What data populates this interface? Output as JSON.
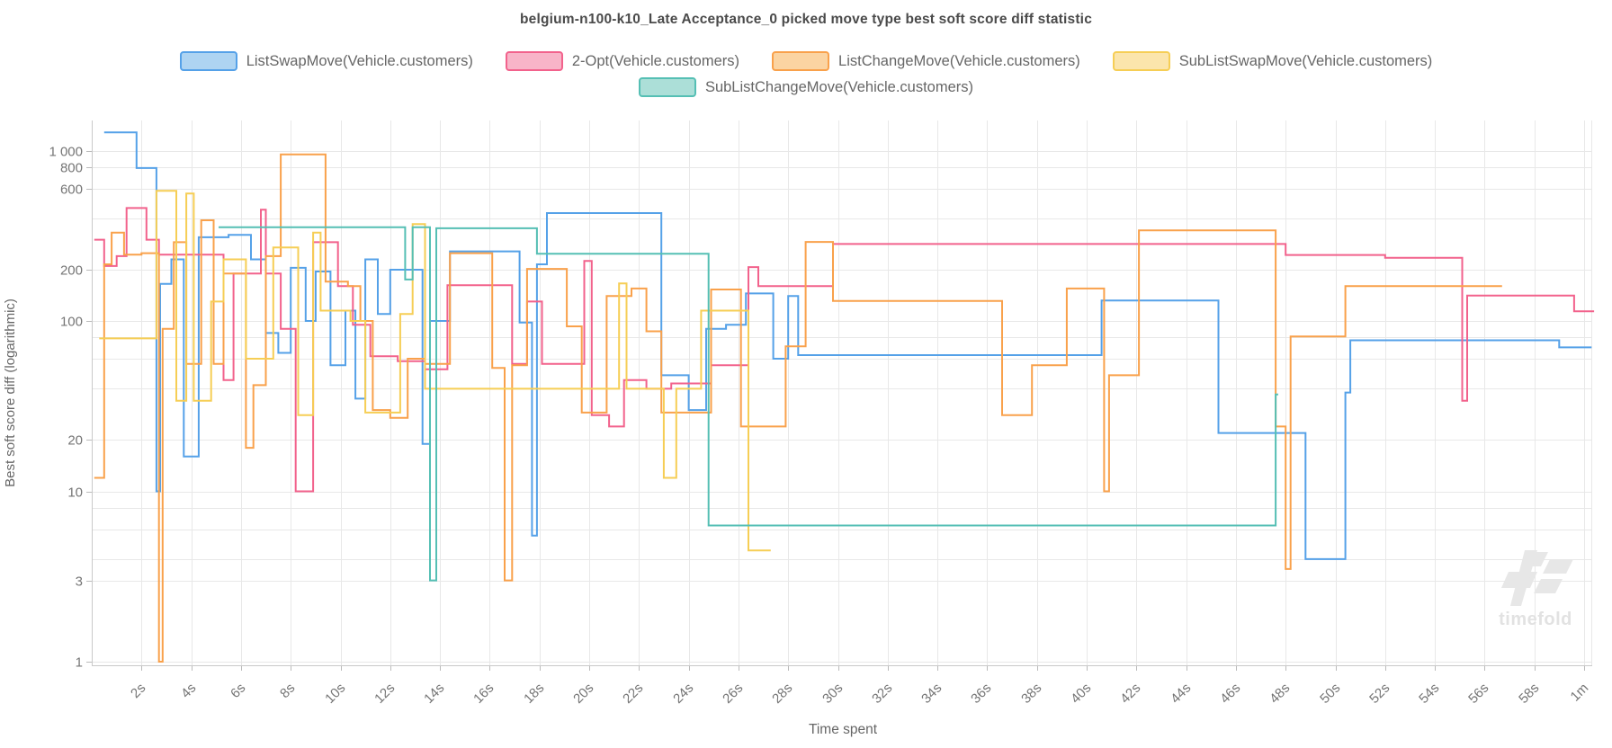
{
  "title": "belgium-n100-k10_Late Acceptance_0 picked move type best soft score diff statistic",
  "watermark": {
    "text": "timefold",
    "logo_icon": "timefold-tf-logo",
    "color": "#e7e7e7"
  },
  "axes": {
    "y_title": "Best soft score diff (logarithmic)",
    "x_title": "Time spent",
    "y_major_ticks": [
      {
        "v": 1000,
        "label": "1 000"
      },
      {
        "v": 800,
        "label": "800"
      },
      {
        "v": 600,
        "label": "600"
      },
      {
        "v": 200,
        "label": "200"
      },
      {
        "v": 100,
        "label": "100"
      },
      {
        "v": 20,
        "label": "20"
      },
      {
        "v": 10,
        "label": "10"
      },
      {
        "v": 3,
        "label": "3"
      },
      {
        "v": 1,
        "label": "1"
      }
    ],
    "y_minor_gridlines": [
      400,
      80,
      60,
      40,
      8,
      6,
      4
    ],
    "x_ticks": [
      {
        "t": 2,
        "label": "2s"
      },
      {
        "t": 4,
        "label": "4s"
      },
      {
        "t": 6,
        "label": "6s"
      },
      {
        "t": 8,
        "label": "8s"
      },
      {
        "t": 10,
        "label": "10s"
      },
      {
        "t": 12,
        "label": "12s"
      },
      {
        "t": 14,
        "label": "14s"
      },
      {
        "t": 16,
        "label": "16s"
      },
      {
        "t": 18,
        "label": "18s"
      },
      {
        "t": 20,
        "label": "20s"
      },
      {
        "t": 22,
        "label": "22s"
      },
      {
        "t": 24,
        "label": "24s"
      },
      {
        "t": 26,
        "label": "26s"
      },
      {
        "t": 28,
        "label": "28s"
      },
      {
        "t": 30,
        "label": "30s"
      },
      {
        "t": 32,
        "label": "32s"
      },
      {
        "t": 34,
        "label": "34s"
      },
      {
        "t": 36,
        "label": "36s"
      },
      {
        "t": 38,
        "label": "38s"
      },
      {
        "t": 40,
        "label": "40s"
      },
      {
        "t": 42,
        "label": "42s"
      },
      {
        "t": 44,
        "label": "44s"
      },
      {
        "t": 46,
        "label": "46s"
      },
      {
        "t": 48,
        "label": "48s"
      },
      {
        "t": 50,
        "label": "50s"
      },
      {
        "t": 52,
        "label": "52s"
      },
      {
        "t": 54,
        "label": "54s"
      },
      {
        "t": 56,
        "label": "56s"
      },
      {
        "t": 58,
        "label": "58s"
      },
      {
        "t": 60,
        "label": "1m"
      }
    ]
  },
  "legend": {
    "rows": [
      [
        0,
        1,
        2,
        3
      ],
      [
        4
      ]
    ]
  },
  "colors": {
    "grid": "#e8e8e8",
    "axis": "#c9c9c9",
    "tick": "#bbbbbb",
    "tick_text": "#757575",
    "axis_title_text": "#666666"
  },
  "chart_data": {
    "type": "line",
    "step": true,
    "x_unit": "seconds",
    "xlim": [
      0,
      60.5
    ],
    "y_scale": "log",
    "ylim": [
      1,
      1500
    ],
    "grid": true,
    "legend_position": "top",
    "series": [
      {
        "name": "ListSwapMove(Vehicle.customers)",
        "color": "#55a1e8",
        "fill": "#aed4f2",
        "points": [
          [
            0.5,
            1280
          ],
          [
            1.8,
            790
          ],
          [
            2.6,
            10
          ],
          [
            2.75,
            165
          ],
          [
            3.2,
            230
          ],
          [
            3.7,
            16
          ],
          [
            4.3,
            310
          ],
          [
            5.5,
            320
          ],
          [
            6.4,
            230
          ],
          [
            7.0,
            85
          ],
          [
            7.5,
            65
          ],
          [
            8.0,
            205
          ],
          [
            8.6,
            100
          ],
          [
            9.0,
            195
          ],
          [
            9.6,
            55
          ],
          [
            10.2,
            115
          ],
          [
            10.6,
            35
          ],
          [
            11.0,
            230
          ],
          [
            11.5,
            110
          ],
          [
            12.0,
            200
          ],
          [
            13.3,
            19
          ],
          [
            13.6,
            100
          ],
          [
            14.4,
            256
          ],
          [
            17.2,
            98
          ],
          [
            17.7,
            5.5
          ],
          [
            17.9,
            215
          ],
          [
            18.3,
            430
          ],
          [
            22.9,
            48
          ],
          [
            24.0,
            30
          ],
          [
            24.7,
            90
          ],
          [
            25.5,
            95
          ],
          [
            26.3,
            145
          ],
          [
            27.4,
            60
          ],
          [
            28.0,
            140
          ],
          [
            28.4,
            63
          ],
          [
            40.6,
            132
          ],
          [
            45.3,
            22
          ],
          [
            48.8,
            4
          ],
          [
            50.4,
            38
          ],
          [
            50.6,
            77
          ],
          [
            56.7,
            77
          ],
          [
            59.0,
            70
          ],
          [
            60.3,
            70
          ]
        ]
      },
      {
        "name": "2-Opt(Vehicle.customers)",
        "color": "#f2628c",
        "fill": "#f8b4c8",
        "points": [
          [
            0.1,
            300
          ],
          [
            0.5,
            210
          ],
          [
            1.0,
            240
          ],
          [
            1.4,
            460
          ],
          [
            2.2,
            300
          ],
          [
            2.7,
            245
          ],
          [
            5.0,
            245
          ],
          [
            5.3,
            45
          ],
          [
            5.7,
            190
          ],
          [
            6.4,
            190
          ],
          [
            6.8,
            450
          ],
          [
            7.0,
            190
          ],
          [
            7.6,
            90
          ],
          [
            8.2,
            10
          ],
          [
            8.9,
            290
          ],
          [
            9.9,
            160
          ],
          [
            10.5,
            95
          ],
          [
            11.2,
            62
          ],
          [
            12.3,
            58
          ],
          [
            13.4,
            52
          ],
          [
            14.3,
            162
          ],
          [
            16.9,
            56
          ],
          [
            17.5,
            130
          ],
          [
            18.1,
            56
          ],
          [
            19.8,
            225
          ],
          [
            20.1,
            28
          ],
          [
            20.8,
            24
          ],
          [
            21.4,
            45
          ],
          [
            22.3,
            40
          ],
          [
            23.3,
            43
          ],
          [
            24.9,
            55
          ],
          [
            26.4,
            207
          ],
          [
            26.8,
            160
          ],
          [
            29.8,
            283
          ],
          [
            48.0,
            244
          ],
          [
            52.0,
            235
          ],
          [
            55.1,
            34
          ],
          [
            55.3,
            141
          ],
          [
            59.6,
            114
          ],
          [
            60.4,
            114
          ]
        ]
      },
      {
        "name": "ListChangeMove(Vehicle.customers)",
        "color": "#f9a14b",
        "fill": "#fbd4a2",
        "points": [
          [
            0.1,
            12
          ],
          [
            0.5,
            215
          ],
          [
            0.8,
            330
          ],
          [
            1.3,
            245
          ],
          [
            2.0,
            250
          ],
          [
            2.7,
            1
          ],
          [
            2.85,
            90
          ],
          [
            3.3,
            290
          ],
          [
            3.8,
            56
          ],
          [
            4.4,
            390
          ],
          [
            4.9,
            56
          ],
          [
            5.3,
            190
          ],
          [
            6.2,
            18
          ],
          [
            6.5,
            42
          ],
          [
            7.0,
            240
          ],
          [
            7.6,
            950
          ],
          [
            9.4,
            170
          ],
          [
            10.3,
            160
          ],
          [
            10.8,
            100
          ],
          [
            11.3,
            30
          ],
          [
            12.0,
            27
          ],
          [
            12.7,
            60
          ],
          [
            13.4,
            56
          ],
          [
            14.4,
            250
          ],
          [
            16.1,
            53
          ],
          [
            16.6,
            3
          ],
          [
            16.9,
            55
          ],
          [
            17.5,
            202
          ],
          [
            19.1,
            93
          ],
          [
            19.7,
            29
          ],
          [
            20.7,
            140
          ],
          [
            21.7,
            155
          ],
          [
            22.3,
            87
          ],
          [
            22.9,
            29
          ],
          [
            24.9,
            153
          ],
          [
            26.1,
            24
          ],
          [
            27.9,
            71
          ],
          [
            28.7,
            291
          ],
          [
            29.8,
            131
          ],
          [
            36.6,
            28
          ],
          [
            37.8,
            55
          ],
          [
            39.2,
            155
          ],
          [
            40.7,
            10
          ],
          [
            40.9,
            48
          ],
          [
            42.1,
            340
          ],
          [
            47.6,
            24
          ],
          [
            48.0,
            3.5
          ],
          [
            48.2,
            81
          ],
          [
            50.4,
            160
          ],
          [
            56.7,
            160
          ]
        ]
      },
      {
        "name": "SubListSwapMove(Vehicle.customers)",
        "color": "#f6ce55",
        "fill": "#fbe5ac",
        "points": [
          [
            0.3,
            79
          ],
          [
            2.6,
            580
          ],
          [
            3.4,
            34
          ],
          [
            3.8,
            560
          ],
          [
            4.1,
            34
          ],
          [
            4.8,
            130
          ],
          [
            5.3,
            230
          ],
          [
            6.2,
            60
          ],
          [
            7.3,
            270
          ],
          [
            8.3,
            28
          ],
          [
            8.9,
            330
          ],
          [
            9.2,
            115
          ],
          [
            10.4,
            100
          ],
          [
            11.0,
            29
          ],
          [
            12.4,
            110
          ],
          [
            12.9,
            370
          ],
          [
            13.4,
            40
          ],
          [
            21.2,
            166
          ],
          [
            21.5,
            40
          ],
          [
            23.0,
            12
          ],
          [
            23.5,
            40
          ],
          [
            24.5,
            115
          ],
          [
            26.4,
            4.5
          ],
          [
            27.3,
            4.5
          ]
        ]
      },
      {
        "name": "SubListChangeMove(Vehicle.customers)",
        "color": "#55bfb4",
        "fill": "#acdfd8",
        "points": [
          [
            5.1,
            355
          ],
          [
            12.6,
            175
          ],
          [
            12.9,
            355
          ],
          [
            13.6,
            3
          ],
          [
            13.85,
            350
          ],
          [
            17.9,
            248
          ],
          [
            24.8,
            6.3
          ],
          [
            47.6,
            37
          ],
          [
            47.7,
            37
          ]
        ]
      }
    ]
  }
}
